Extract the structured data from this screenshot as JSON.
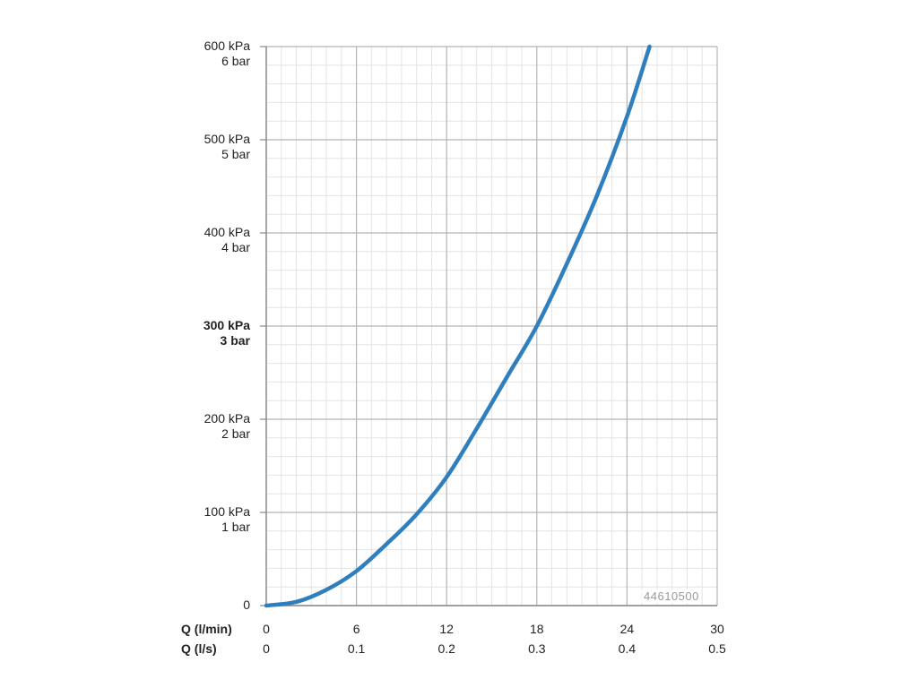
{
  "chart_data": {
    "type": "line",
    "title": "",
    "xlabel_primary": "Q (l/min)",
    "xlabel_secondary": "Q (l/s)",
    "ylabel": "",
    "xlim": [
      0,
      30
    ],
    "ylim": [
      0,
      600
    ],
    "grid": true,
    "y_ticks": [
      {
        "value": 0,
        "kpa": "0",
        "bar": "",
        "bold": false
      },
      {
        "value": 100,
        "kpa": "100 kPa",
        "bar": "1 bar",
        "bold": false
      },
      {
        "value": 200,
        "kpa": "200 kPa",
        "bar": "2 bar",
        "bold": false
      },
      {
        "value": 300,
        "kpa": "300 kPa",
        "bar": "3 bar",
        "bold": true
      },
      {
        "value": 400,
        "kpa": "400 kPa",
        "bar": "4 bar",
        "bold": false
      },
      {
        "value": 500,
        "kpa": "500 kPa",
        "bar": "5 bar",
        "bold": false
      },
      {
        "value": 600,
        "kpa": "600 kPa",
        "bar": "6 bar",
        "bold": false
      }
    ],
    "x_ticks_lmin": [
      "0",
      "6",
      "12",
      "18",
      "24",
      "30"
    ],
    "x_ticks_ls": [
      "0",
      "0.1",
      "0.2",
      "0.3",
      "0.4",
      "0.5"
    ],
    "series": [
      {
        "color": "#2f7fbf",
        "x": [
          0,
          2,
          4,
          6,
          8,
          10,
          12,
          14,
          16,
          18,
          20,
          22,
          24,
          25.5
        ],
        "y": [
          0,
          4,
          17,
          37,
          66,
          98,
          138,
          190,
          245,
          300,
          367,
          440,
          525,
          600
        ]
      }
    ],
    "annotation": "44610500"
  }
}
